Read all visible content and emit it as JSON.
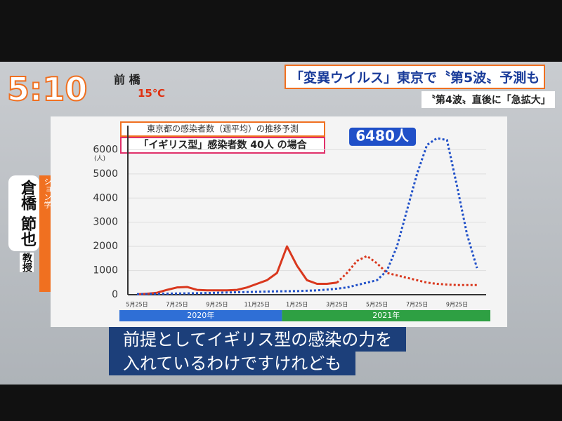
{
  "overlay": {
    "time": "5:10",
    "place": "前 橋",
    "temperature": "15℃",
    "headline": "「変異ウイルス」東京で〝第5波〟予測も",
    "subhead": "〝第4波〟直後に「急拡大」",
    "person_name": "倉橋 節也",
    "person_title": "教授",
    "affiliation": "筑波大学大学院 社会シミュレーション学",
    "caption": [
      "前提としてイギリス型の感染の力を",
      "入れているわけですけれども"
    ]
  },
  "chart_data": {
    "type": "line",
    "title": "東京都の感染者数（週平均）の推移予測",
    "subtitle": "「イギリス型」感染者数 40人 の場合",
    "y_unit": "(人)",
    "categories": [
      "5月25日",
      null,
      null,
      null,
      "7月25日",
      null,
      null,
      null,
      "9月25日",
      null,
      null,
      null,
      "11月25日",
      null,
      null,
      null,
      "1月25日",
      null,
      null,
      null,
      "3月25日",
      null,
      null,
      null,
      "5月25日",
      null,
      null,
      null,
      "7月25日",
      null,
      null,
      null,
      "9月25日",
      null,
      null
    ],
    "periods": [
      {
        "label": "2020年",
        "color": "#2f6fd6"
      },
      {
        "label": "2021年",
        "color": "#2ea043"
      }
    ],
    "ylim": [
      0,
      7000
    ],
    "yticks": [
      0,
      1000,
      2000,
      3000,
      4000,
      5000,
      6000
    ],
    "grid": true,
    "series": [
      {
        "color": "#d9381e",
        "style": "solid",
        "values": [
          20,
          40,
          80,
          200,
          300,
          320,
          200,
          180,
          180,
          180,
          200,
          300,
          450,
          600,
          900,
          2000,
          1200,
          600,
          450,
          450,
          500,
          null,
          null,
          null,
          null,
          null,
          null,
          null,
          null,
          null,
          null,
          null,
          null,
          null,
          null
        ]
      },
      {
        "color": "#d9381e",
        "style": "dotted",
        "values": [
          null,
          null,
          null,
          null,
          null,
          null,
          null,
          null,
          null,
          null,
          null,
          null,
          null,
          null,
          null,
          null,
          null,
          null,
          null,
          null,
          500,
          900,
          1400,
          1600,
          1300,
          900,
          800,
          700,
          600,
          500,
          450,
          420,
          400,
          400,
          400
        ]
      },
      {
        "color": "#2050c8",
        "style": "dotted",
        "values": [
          20,
          30,
          40,
          45,
          50,
          55,
          60,
          70,
          80,
          90,
          100,
          110,
          120,
          130,
          140,
          145,
          150,
          165,
          180,
          210,
          250,
          300,
          400,
          500,
          600,
          1000,
          2000,
          3500,
          5000,
          6200,
          6480,
          6400,
          4500,
          2500,
          1100
        ],
        "value_labels": [
          null,
          null,
          null,
          null,
          null,
          null,
          null,
          null,
          null,
          null,
          null,
          null,
          null,
          null,
          null,
          null,
          null,
          null,
          null,
          null,
          null,
          null,
          null,
          null,
          null,
          null,
          null,
          null,
          null,
          null,
          "6480人",
          null,
          null,
          null,
          null
        ]
      }
    ]
  }
}
